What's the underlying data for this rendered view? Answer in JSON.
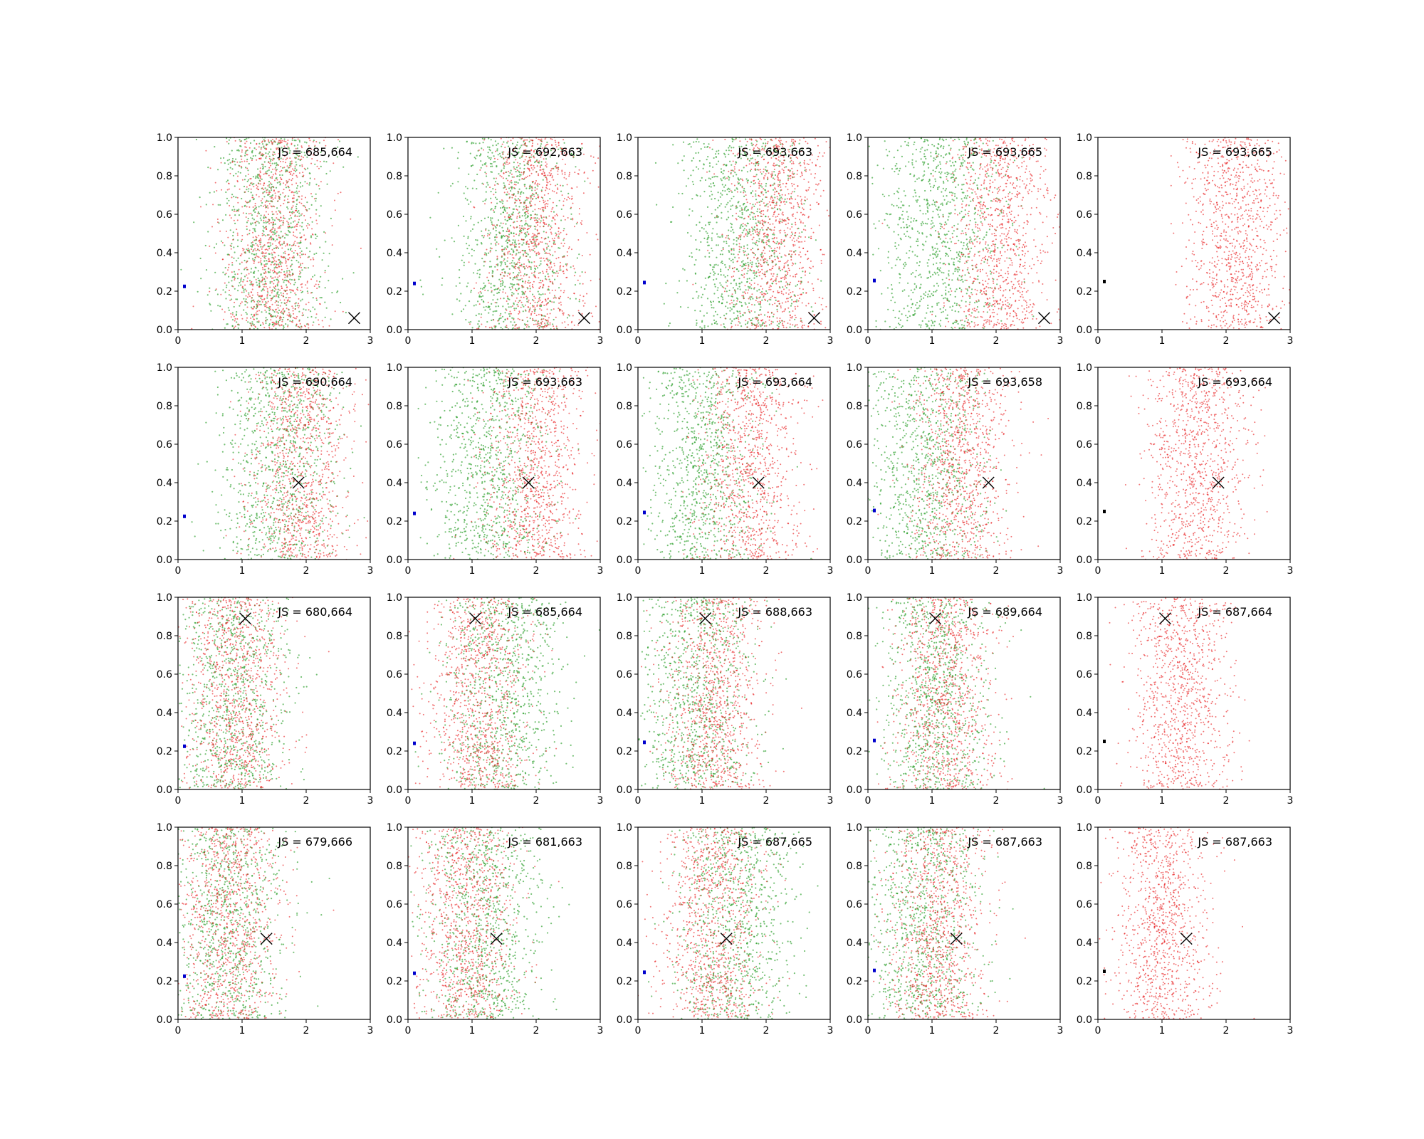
{
  "chart_data": {
    "type": "scatter",
    "layout": {
      "rows": 4,
      "cols": 5
    },
    "shared_axes": {
      "xlim": [
        0,
        3
      ],
      "ylim": [
        0,
        1
      ],
      "x_ticks": [
        "0",
        "1",
        "2",
        "3"
      ],
      "y_ticks": [
        "0.0",
        "0.2",
        "0.4",
        "0.6",
        "0.8",
        "1.0"
      ],
      "grid": false
    },
    "colors": {
      "series_a": "#2ca02c",
      "series_b": "#e8191b",
      "marker": "#000000",
      "blue_marker": "#0000cc",
      "black_marker": "#000000"
    },
    "rows": [
      {
        "x_marker": [
          2.75,
          0.06
        ],
        "js": [
          "JS = 685,664",
          "JS = 692,663",
          "JS = 693,663",
          "JS = 693,665",
          "JS = 693,665"
        ],
        "green_center": [
          1.4,
          1.6,
          1.6,
          1.15,
          null
        ],
        "red_center": [
          1.5,
          2.0,
          2.15,
          2.05,
          2.15
        ]
      },
      {
        "x_marker": [
          1.88,
          0.4
        ],
        "js": [
          "JS = 690,664",
          "JS = 693,663",
          "JS = 693,664",
          "JS = 693,658",
          "JS = 693,664"
        ],
        "green_center": [
          1.6,
          1.25,
          1.0,
          0.9,
          null
        ],
        "red_center": [
          1.9,
          2.0,
          1.75,
          1.45,
          1.55
        ]
      },
      {
        "x_marker": [
          1.05,
          0.89
        ],
        "js": [
          "JS = 680,664",
          "JS = 685,664",
          "JS = 688,663",
          "JS = 689,664",
          "JS = 687,664"
        ],
        "green_center": [
          0.85,
          1.5,
          0.9,
          1.05,
          null
        ],
        "red_center": [
          0.9,
          1.1,
          1.2,
          1.2,
          1.3
        ]
      },
      {
        "x_marker": [
          1.38,
          0.42
        ],
        "js": [
          "JS = 679,666",
          "JS = 681,663",
          "JS = 687,665",
          "JS = 687,663",
          "JS = 687,663"
        ],
        "green_center": [
          0.75,
          1.2,
          1.55,
          0.85,
          null
        ],
        "red_center": [
          0.8,
          0.9,
          1.15,
          1.1,
          1.0
        ]
      }
    ],
    "side_marker": {
      "x": 0.1,
      "y": [
        0.225,
        0.24,
        0.245,
        0.255,
        0.25
      ],
      "color_by_col": [
        "blue",
        "blue",
        "blue",
        "blue",
        "black"
      ]
    }
  }
}
